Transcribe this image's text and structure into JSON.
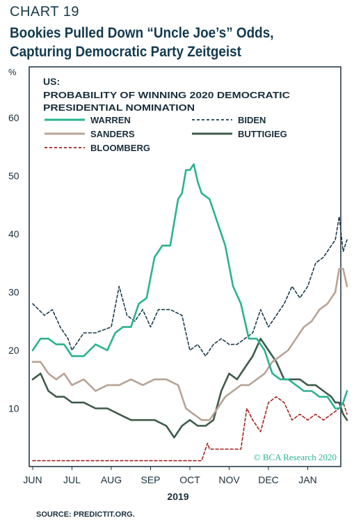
{
  "header": {
    "chart_number": "CHART 19",
    "title_line1": "Bookies Pulled Down “Uncle Joe’s” Odds,",
    "title_line2": "Capturing Democratic Party Zeitgeist"
  },
  "source": "SOURCE: PREDICTIT.ORG.",
  "copyright": "© BCA Research 2020",
  "colors": {
    "warren": "#2ab38f",
    "biden": "#1b3a4b",
    "sanders": "#b8a395",
    "buttigieg": "#3e5a4a",
    "bloomberg": "#a0221e",
    "copyright": "#2ab38f"
  },
  "chart_data": {
    "type": "line",
    "units": "%",
    "region": "US:",
    "subtitle_line1": "PROBABILITY OF WINNING 2020 DEMOCRATIC",
    "subtitle_line2": "PRESIDENTIAL NOMINATION",
    "xlabel": "2019",
    "x_tick_labels": [
      "JUN",
      "JUL",
      "AUG",
      "SEP",
      "OCT",
      "NOV",
      "DEC",
      "JAN"
    ],
    "y_ticks": [
      10,
      20,
      30,
      40,
      50,
      60
    ],
    "ylim": [
      0,
      68
    ],
    "xlim": [
      0,
      8.2
    ],
    "x_unit": "months since JUN 2019",
    "grid": false,
    "legend_position": "top-left",
    "series": [
      {
        "name": "WARREN",
        "style": "solid",
        "color_key": "warren",
        "x": [
          0.0,
          0.2,
          0.4,
          0.6,
          0.8,
          1.0,
          1.3,
          1.6,
          1.9,
          2.1,
          2.3,
          2.5,
          2.7,
          2.9,
          3.1,
          3.3,
          3.5,
          3.7,
          3.8,
          3.9,
          4.0,
          4.1,
          4.2,
          4.3,
          4.5,
          4.7,
          4.9,
          5.1,
          5.3,
          5.5,
          5.7,
          5.9,
          6.1,
          6.3,
          6.5,
          6.7,
          6.9,
          7.1,
          7.3,
          7.5,
          7.7,
          7.8,
          7.9,
          8.0
        ],
        "y": [
          20,
          22,
          22,
          21,
          21,
          19,
          19,
          21,
          20,
          23,
          24,
          24,
          28,
          29,
          36,
          38,
          38,
          46,
          47,
          51,
          51,
          52,
          49,
          47,
          46,
          42,
          38,
          31,
          28,
          22,
          22,
          20,
          16,
          15,
          15,
          14,
          13,
          13,
          12,
          12,
          10,
          10,
          11,
          13
        ]
      },
      {
        "name": "BIDEN",
        "style": "dashed",
        "color_key": "biden",
        "x": [
          0.0,
          0.3,
          0.5,
          0.7,
          0.9,
          1.0,
          1.3,
          1.6,
          2.0,
          2.2,
          2.4,
          2.6,
          2.8,
          3.0,
          3.2,
          3.5,
          3.8,
          4.0,
          4.2,
          4.4,
          4.6,
          4.8,
          5.0,
          5.2,
          5.4,
          5.6,
          5.8,
          6.0,
          6.2,
          6.4,
          6.6,
          6.8,
          7.0,
          7.2,
          7.4,
          7.6,
          7.7,
          7.8,
          7.9,
          8.0
        ],
        "y": [
          28,
          26,
          27,
          24,
          22,
          20,
          23,
          23,
          24,
          31,
          26,
          25,
          27,
          24,
          27,
          27,
          26,
          20,
          21,
          19,
          21,
          22,
          21,
          21,
          22,
          23,
          27,
          24,
          26,
          28,
          31,
          29,
          31,
          35,
          36,
          38,
          39,
          43,
          37,
          39
        ]
      },
      {
        "name": "SANDERS",
        "style": "solid",
        "color_key": "sanders",
        "x": [
          0.0,
          0.2,
          0.4,
          0.6,
          0.8,
          1.0,
          1.3,
          1.6,
          1.9,
          2.2,
          2.5,
          2.8,
          3.1,
          3.4,
          3.7,
          3.9,
          4.1,
          4.3,
          4.5,
          4.7,
          4.9,
          5.1,
          5.3,
          5.5,
          5.7,
          5.9,
          6.1,
          6.3,
          6.5,
          6.7,
          6.9,
          7.1,
          7.3,
          7.5,
          7.7,
          7.8,
          7.9,
          8.0
        ],
        "y": [
          18,
          18,
          16,
          15,
          16,
          14,
          15,
          13,
          14,
          14,
          15,
          14,
          15,
          15,
          14,
          10,
          9,
          8,
          8,
          10,
          12,
          13,
          14,
          14,
          15,
          16,
          18,
          19,
          20,
          22,
          24,
          25,
          27,
          28,
          30,
          34,
          34,
          31
        ]
      },
      {
        "name": "BUTTIGIEG",
        "style": "solid",
        "color_key": "buttigieg",
        "x": [
          0.0,
          0.2,
          0.4,
          0.6,
          0.8,
          1.0,
          1.3,
          1.6,
          1.9,
          2.2,
          2.5,
          2.8,
          3.1,
          3.4,
          3.6,
          3.8,
          4.0,
          4.2,
          4.4,
          4.6,
          4.8,
          5.0,
          5.2,
          5.4,
          5.6,
          5.8,
          6.0,
          6.2,
          6.4,
          6.6,
          6.8,
          7.0,
          7.2,
          7.4,
          7.6,
          7.7,
          7.8,
          7.9,
          8.0
        ],
        "y": [
          15,
          16,
          13,
          12,
          12,
          11,
          11,
          10,
          10,
          9,
          8,
          8,
          8,
          7,
          5,
          7,
          8,
          7,
          7,
          8,
          13,
          16,
          15,
          17,
          19,
          22,
          20,
          18,
          15,
          15,
          15,
          14,
          14,
          13,
          12,
          11,
          11,
          9,
          8
        ]
      },
      {
        "name": "BLOOMBERG",
        "style": "dashed",
        "color_key": "bloomberg",
        "x": [
          0.0,
          4.3,
          4.45,
          4.5,
          4.7,
          4.9,
          5.1,
          5.3,
          5.45,
          5.6,
          5.8,
          6.0,
          6.2,
          6.4,
          6.6,
          6.8,
          7.0,
          7.2,
          7.4,
          7.6,
          7.8,
          7.9,
          8.0
        ],
        "y": [
          1,
          1,
          4,
          3,
          3,
          3,
          3,
          3,
          10,
          8,
          6,
          11,
          12,
          11,
          8,
          9,
          8,
          9,
          8,
          9,
          10,
          11,
          9
        ]
      }
    ]
  }
}
